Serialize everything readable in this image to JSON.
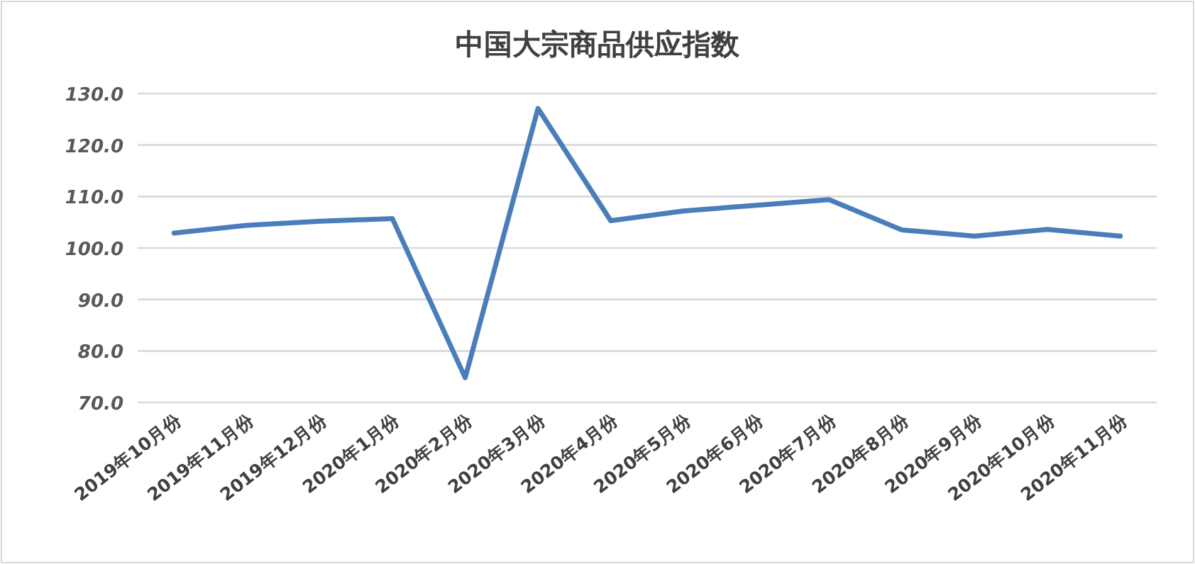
{
  "chart_data": {
    "type": "line",
    "title": "中国大宗商品供应指数",
    "categories": [
      "2019年10月份",
      "2019年11月份",
      "2019年12月份",
      "2020年1月份",
      "2020年2月份",
      "2020年3月份",
      "2020年4月份",
      "2020年5月份",
      "2020年6月份",
      "2020年7月份",
      "2020年8月份",
      "2020年9月份",
      "2020年10月份",
      "2020年11月份"
    ],
    "series": [
      {
        "color": "#4a7ebb",
        "values": [
          102.9,
          104.4,
          105.2,
          105.7,
          74.8,
          127.1,
          105.3,
          107.2,
          108.3,
          109.4,
          103.5,
          102.3,
          103.6,
          102.3
        ]
      }
    ],
    "ylim": [
      70,
      130
    ],
    "yticks": [
      {
        "value": 70,
        "label": "70.0"
      },
      {
        "value": 80,
        "label": "80.0"
      },
      {
        "value": 90,
        "label": "90.0"
      },
      {
        "value": 100,
        "label": "100.0"
      },
      {
        "value": 110,
        "label": "110.0"
      },
      {
        "value": 120,
        "label": "120.0"
      },
      {
        "value": 130,
        "label": "130.0"
      }
    ],
    "grid": "y"
  }
}
